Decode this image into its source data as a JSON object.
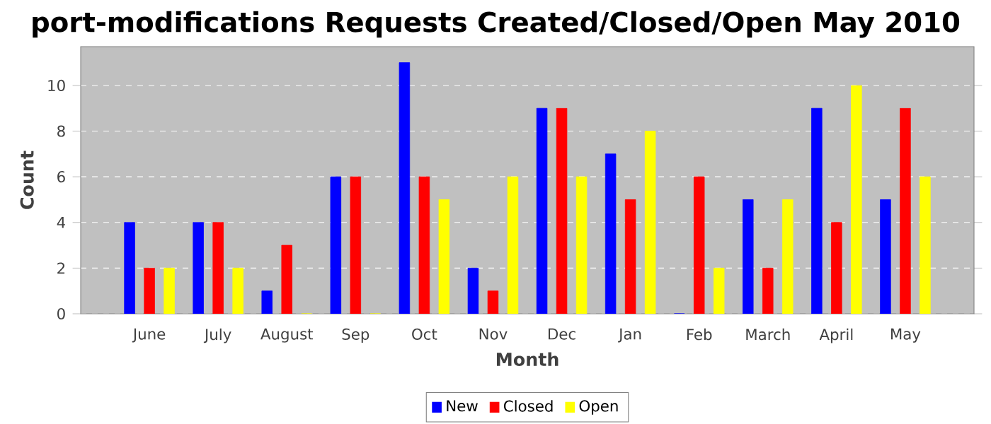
{
  "chart_data": {
    "type": "bar",
    "title": "port-modifications Requests Created/Closed/Open May 2010",
    "xlabel": "Month",
    "ylabel": "Count",
    "categories": [
      "June",
      "July",
      "August",
      "Sep",
      "Oct",
      "Nov",
      "Dec",
      "Jan",
      "Feb",
      "March",
      "April",
      "May"
    ],
    "series": [
      {
        "name": "New",
        "color": "#0000ff",
        "values": [
          4,
          4,
          1,
          6,
          11,
          2,
          9,
          7,
          0,
          5,
          9,
          5
        ]
      },
      {
        "name": "Closed",
        "color": "#ff0000",
        "values": [
          2,
          4,
          3,
          6,
          6,
          1,
          9,
          5,
          6,
          2,
          4,
          9
        ]
      },
      {
        "name": "Open",
        "color": "#ffff00",
        "values": [
          2,
          2,
          0,
          0,
          5,
          6,
          6,
          8,
          2,
          5,
          10,
          6
        ]
      }
    ],
    "ylim": [
      0,
      11.7
    ],
    "yticks": [
      0,
      2,
      4,
      6,
      8,
      10
    ],
    "grid": "y",
    "legend": "bottom"
  }
}
